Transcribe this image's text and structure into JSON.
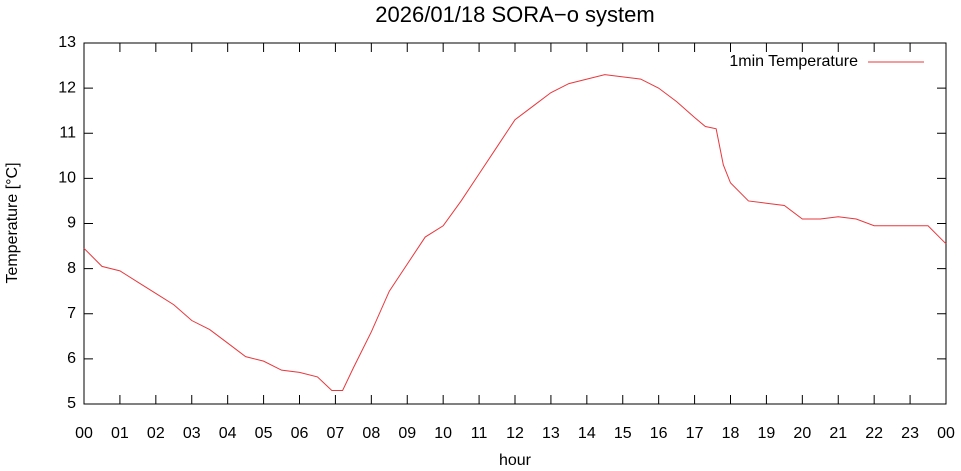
{
  "chart_data": {
    "type": "line",
    "title": "2026/01/18 SORA−o system",
    "xlabel": "hour",
    "ylabel": "Temperature [°C]",
    "x": [
      0,
      0.5,
      1,
      1.5,
      2,
      2.5,
      3,
      3.5,
      4,
      4.5,
      5,
      5.5,
      6,
      6.5,
      6.9,
      7.2,
      7.5,
      8,
      8.5,
      9,
      9.5,
      10,
      10.5,
      11,
      11.5,
      12,
      12.5,
      13,
      13.5,
      14,
      14.5,
      15,
      15.5,
      16,
      16.5,
      17,
      17.3,
      17.6,
      17.8,
      18,
      18.5,
      19,
      19.5,
      20,
      20.5,
      21,
      21.5,
      22,
      22.5,
      23,
      23.5,
      24
    ],
    "series": [
      {
        "name": "1min Temperature",
        "color": "#e8373c",
        "values": [
          8.45,
          8.05,
          7.95,
          7.7,
          7.45,
          7.2,
          6.85,
          6.65,
          6.35,
          6.05,
          5.95,
          5.75,
          5.7,
          5.6,
          5.3,
          5.3,
          5.8,
          6.6,
          7.5,
          8.1,
          8.7,
          8.95,
          9.5,
          10.1,
          10.7,
          11.3,
          11.6,
          11.9,
          12.1,
          12.2,
          12.3,
          12.25,
          12.2,
          12.0,
          11.7,
          11.35,
          11.15,
          11.1,
          10.3,
          9.9,
          9.5,
          9.45,
          9.4,
          9.1,
          9.1,
          9.15,
          9.1,
          8.95,
          8.95,
          8.95,
          8.95,
          8.55
        ]
      }
    ],
    "xlim": [
      0,
      24
    ],
    "xticks": [
      {
        "value": 0,
        "label": "00"
      },
      {
        "value": 1,
        "label": "01"
      },
      {
        "value": 2,
        "label": "02"
      },
      {
        "value": 3,
        "label": "03"
      },
      {
        "value": 4,
        "label": "04"
      },
      {
        "value": 5,
        "label": "05"
      },
      {
        "value": 6,
        "label": "06"
      },
      {
        "value": 7,
        "label": "07"
      },
      {
        "value": 8,
        "label": "08"
      },
      {
        "value": 9,
        "label": "09"
      },
      10,
      11,
      12,
      13,
      14,
      15,
      16,
      17,
      18,
      19,
      20,
      21,
      22,
      23,
      {
        "value": 24,
        "label": "00"
      }
    ],
    "ylim": [
      5,
      13
    ],
    "yticks": [
      5,
      6,
      7,
      8,
      9,
      10,
      11,
      12,
      13
    ],
    "legend": "upper right"
  }
}
